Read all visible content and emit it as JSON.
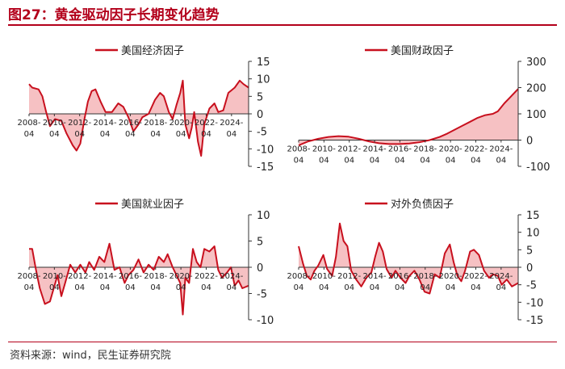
{
  "header": {
    "title": "图27：黄金驱动因子长期变化趋势"
  },
  "footer": {
    "source": "资料来源：wind，民生证券研究院"
  },
  "colors": {
    "line": "#c8101e",
    "fill": "#f4b6b9",
    "rule": "#b3001b",
    "axis": "#333333"
  },
  "chart_data": [
    {
      "type": "area",
      "legend": "美国经济因子",
      "yticks": [
        15,
        10,
        5,
        0,
        -5,
        -10,
        -15
      ],
      "ylim": [
        -15,
        15
      ],
      "xticks": [
        "2008-04",
        "2010-04",
        "2012-04",
        "2014-04",
        "2016-04",
        "2018-04",
        "2020-04",
        "2022-04",
        "2024-04"
      ],
      "x_start": 2008.25,
      "x_end": 2025.6,
      "points": [
        [
          2008.25,
          8.5
        ],
        [
          2008.5,
          7.5
        ],
        [
          2009.0,
          7.0
        ],
        [
          2009.3,
          5.0
        ],
        [
          2009.6,
          0.5
        ],
        [
          2009.9,
          -3.5
        ],
        [
          2010.3,
          -1.5
        ],
        [
          2010.8,
          -2.0
        ],
        [
          2011.2,
          -5.5
        ],
        [
          2011.7,
          -9.0
        ],
        [
          2012.0,
          -10.5
        ],
        [
          2012.3,
          -8.5
        ],
        [
          2012.6,
          -2.0
        ],
        [
          2012.9,
          3.5
        ],
        [
          2013.2,
          6.5
        ],
        [
          2013.5,
          7.0
        ],
        [
          2013.9,
          3.5
        ],
        [
          2014.3,
          0.5
        ],
        [
          2014.8,
          0.5
        ],
        [
          2015.3,
          3.0
        ],
        [
          2015.7,
          2.0
        ],
        [
          2016.1,
          -1.0
        ],
        [
          2016.5,
          -5.0
        ],
        [
          2016.9,
          -3.0
        ],
        [
          2017.2,
          -1.0
        ],
        [
          2017.7,
          0.0
        ],
        [
          2018.2,
          4.0
        ],
        [
          2018.6,
          6.0
        ],
        [
          2018.9,
          5.0
        ],
        [
          2019.3,
          0.5
        ],
        [
          2019.6,
          -1.5
        ],
        [
          2019.9,
          2.5
        ],
        [
          2020.2,
          6.0
        ],
        [
          2020.4,
          9.5
        ],
        [
          2020.6,
          -3.0
        ],
        [
          2020.9,
          -7.0
        ],
        [
          2021.1,
          -4.0
        ],
        [
          2021.3,
          0.5
        ],
        [
          2021.6,
          -8.0
        ],
        [
          2021.85,
          -12.0
        ],
        [
          2022.1,
          -3.0
        ],
        [
          2022.5,
          1.5
        ],
        [
          2022.9,
          3.0
        ],
        [
          2023.2,
          0.5
        ],
        [
          2023.6,
          1.0
        ],
        [
          2024.0,
          6.0
        ],
        [
          2024.5,
          7.5
        ],
        [
          2024.9,
          9.5
        ],
        [
          2025.2,
          8.5
        ],
        [
          2025.6,
          7.5
        ]
      ]
    },
    {
      "type": "area",
      "legend": "美国财政因子",
      "yticks": [
        300,
        200,
        100,
        0,
        -100
      ],
      "ylim": [
        -100,
        300
      ],
      "xticks": [
        "2008-04",
        "2010-04",
        "2012-04",
        "2014-04",
        "2016-04",
        "2018-04",
        "2020-04",
        "2022-04",
        "2024-04"
      ],
      "x_start": 2008.25,
      "x_end": 2025.6,
      "points": [
        [
          2008.25,
          -20
        ],
        [
          2009.0,
          -5
        ],
        [
          2009.8,
          5
        ],
        [
          2010.6,
          12
        ],
        [
          2011.4,
          15
        ],
        [
          2012.2,
          13
        ],
        [
          2013.0,
          5
        ],
        [
          2013.8,
          -5
        ],
        [
          2014.6,
          -12
        ],
        [
          2015.4,
          -15
        ],
        [
          2016.2,
          -15
        ],
        [
          2017.0,
          -13
        ],
        [
          2017.8,
          -8
        ],
        [
          2018.6,
          0
        ],
        [
          2019.4,
          12
        ],
        [
          2020.0,
          25
        ],
        [
          2020.6,
          40
        ],
        [
          2021.2,
          55
        ],
        [
          2021.8,
          70
        ],
        [
          2022.4,
          85
        ],
        [
          2023.0,
          95
        ],
        [
          2023.6,
          100
        ],
        [
          2024.0,
          110
        ],
        [
          2024.5,
          140
        ],
        [
          2025.0,
          165
        ],
        [
          2025.6,
          195
        ]
      ]
    },
    {
      "type": "area",
      "legend": "美国就业因子",
      "yticks": [
        10,
        5,
        0,
        -5,
        -10
      ],
      "ylim": [
        -10,
        10
      ],
      "xticks": [
        "2008-04",
        "2010-04",
        "2012-04",
        "2014-04",
        "2016-04",
        "2018-04",
        "2020-04",
        "2022-04",
        "2024-04"
      ],
      "x_start": 2008.25,
      "x_end": 2025.6,
      "points": [
        [
          2008.25,
          3.5
        ],
        [
          2008.5,
          3.5
        ],
        [
          2008.8,
          -0.5
        ],
        [
          2009.1,
          -4.0
        ],
        [
          2009.5,
          -7.0
        ],
        [
          2009.9,
          -6.5
        ],
        [
          2010.2,
          -4.0
        ],
        [
          2010.5,
          -1.5
        ],
        [
          2010.8,
          -5.5
        ],
        [
          2011.1,
          -3.0
        ],
        [
          2011.5,
          0.5
        ],
        [
          2011.9,
          -1.0
        ],
        [
          2012.3,
          0.5
        ],
        [
          2012.7,
          -1.0
        ],
        [
          2013.0,
          1.0
        ],
        [
          2013.4,
          -0.5
        ],
        [
          2013.8,
          2.0
        ],
        [
          2014.2,
          1.0
        ],
        [
          2014.6,
          4.5
        ],
        [
          2015.0,
          -0.5
        ],
        [
          2015.4,
          0.0
        ],
        [
          2015.8,
          -3.0
        ],
        [
          2016.1,
          -1.5
        ],
        [
          2016.5,
          -0.5
        ],
        [
          2016.9,
          1.5
        ],
        [
          2017.3,
          -1.0
        ],
        [
          2017.7,
          0.5
        ],
        [
          2018.1,
          -0.5
        ],
        [
          2018.5,
          2.0
        ],
        [
          2018.9,
          1.0
        ],
        [
          2019.2,
          2.5
        ],
        [
          2019.6,
          0.0
        ],
        [
          2019.9,
          -1.5
        ],
        [
          2020.2,
          -3.0
        ],
        [
          2020.4,
          -9.0
        ],
        [
          2020.6,
          -2.0
        ],
        [
          2020.9,
          -3.0
        ],
        [
          2021.2,
          3.5
        ],
        [
          2021.5,
          1.0
        ],
        [
          2021.8,
          0.0
        ],
        [
          2022.1,
          3.5
        ],
        [
          2022.5,
          3.0
        ],
        [
          2022.9,
          4.0
        ],
        [
          2023.2,
          -0.5
        ],
        [
          2023.5,
          -2.0
        ],
        [
          2023.9,
          -1.0
        ],
        [
          2024.2,
          0.0
        ],
        [
          2024.5,
          -3.5
        ],
        [
          2024.8,
          -2.5
        ],
        [
          2025.1,
          -4.0
        ],
        [
          2025.6,
          -3.5
        ]
      ]
    },
    {
      "type": "area",
      "legend": "对外负债因子",
      "yticks": [
        15,
        10,
        5,
        0,
        -5,
        -10,
        -15
      ],
      "ylim": [
        -15,
        15
      ],
      "xticks": [
        "2008-04",
        "2010-04",
        "2012-04",
        "2014-04",
        "2016-04",
        "2018-04",
        "2020-04",
        "2022-04",
        "2024-04"
      ],
      "x_start": 2008.25,
      "x_end": 2025.6,
      "points": [
        [
          2008.25,
          6.0
        ],
        [
          2008.6,
          1.0
        ],
        [
          2008.9,
          -2.5
        ],
        [
          2009.2,
          -3.5
        ],
        [
          2009.5,
          -1.0
        ],
        [
          2009.8,
          0.5
        ],
        [
          2010.2,
          3.5
        ],
        [
          2010.5,
          -0.5
        ],
        [
          2010.9,
          -2.5
        ],
        [
          2011.2,
          3.0
        ],
        [
          2011.5,
          12.5
        ],
        [
          2011.8,
          7.5
        ],
        [
          2012.1,
          6.0
        ],
        [
          2012.4,
          -1.0
        ],
        [
          2012.8,
          -3.5
        ],
        [
          2013.2,
          -5.5
        ],
        [
          2013.6,
          -3.0
        ],
        [
          2014.0,
          -1.5
        ],
        [
          2014.3,
          3.0
        ],
        [
          2014.6,
          7.0
        ],
        [
          2014.9,
          4.5
        ],
        [
          2015.2,
          -0.5
        ],
        [
          2015.6,
          -3.0
        ],
        [
          2015.9,
          -1.0
        ],
        [
          2016.3,
          -3.0
        ],
        [
          2016.7,
          -4.5
        ],
        [
          2017.0,
          -2.5
        ],
        [
          2017.4,
          -1.0
        ],
        [
          2017.8,
          -3.5
        ],
        [
          2018.2,
          -7.0
        ],
        [
          2018.6,
          -7.5
        ],
        [
          2019.0,
          -2.0
        ],
        [
          2019.4,
          -3.0
        ],
        [
          2019.8,
          4.0
        ],
        [
          2020.2,
          6.5
        ],
        [
          2020.5,
          1.5
        ],
        [
          2020.8,
          -2.5
        ],
        [
          2021.1,
          -4.0
        ],
        [
          2021.4,
          -1.0
        ],
        [
          2021.8,
          4.5
        ],
        [
          2022.1,
          5.0
        ],
        [
          2022.5,
          3.5
        ],
        [
          2022.9,
          -1.0
        ],
        [
          2023.3,
          -3.0
        ],
        [
          2023.6,
          -2.0
        ],
        [
          2024.0,
          -2.5
        ],
        [
          2024.3,
          -5.0
        ],
        [
          2024.7,
          -3.5
        ],
        [
          2025.1,
          -5.5
        ],
        [
          2025.6,
          -4.5
        ]
      ]
    }
  ]
}
